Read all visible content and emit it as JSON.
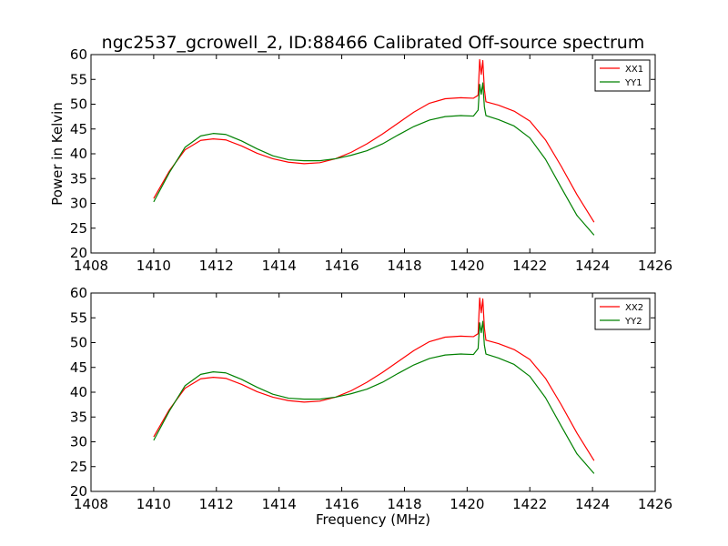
{
  "title": "ngc2537_gcrowell_2, ID:88466 Calibrated Off-source spectrum",
  "chart_data": [
    {
      "type": "line",
      "ylabel": "Power in Kelvin",
      "xlabel": "",
      "xlim": [
        1408,
        1426
      ],
      "ylim": [
        20,
        60
      ],
      "xticks": [
        "1408",
        "1410",
        "1412",
        "1414",
        "1416",
        "1418",
        "1420",
        "1422",
        "1424",
        "1426"
      ],
      "yticks": [
        "20",
        "25",
        "30",
        "35",
        "40",
        "45",
        "50",
        "55",
        "60"
      ],
      "legend": "top-right",
      "series": [
        {
          "name": "XX1",
          "color": "#ff0000",
          "x": [
            1410.0,
            1410.5,
            1411.0,
            1411.5,
            1411.9,
            1412.3,
            1412.8,
            1413.3,
            1413.8,
            1414.3,
            1414.8,
            1415.3,
            1415.8,
            1416.3,
            1416.8,
            1417.3,
            1417.8,
            1418.3,
            1418.8,
            1419.3,
            1419.8,
            1420.2,
            1420.35,
            1420.4,
            1420.45,
            1420.5,
            1420.55,
            1420.6,
            1421.0,
            1421.5,
            1422.0,
            1422.5,
            1423.0,
            1423.5,
            1424.05
          ],
          "values": [
            31,
            36.5,
            40.8,
            42.7,
            43.0,
            42.8,
            41.6,
            40.1,
            39.0,
            38.3,
            38.0,
            38.2,
            39.0,
            40.3,
            42.0,
            44.0,
            46.2,
            48.4,
            50.2,
            51.1,
            51.3,
            51.2,
            51.8,
            59.0,
            56.0,
            58.8,
            53.0,
            50.5,
            49.8,
            48.6,
            46.6,
            42.8,
            37.5,
            31.8,
            26.2
          ]
        },
        {
          "name": "YY1",
          "color": "#008000",
          "x": [
            1410.0,
            1410.5,
            1411.0,
            1411.5,
            1411.9,
            1412.3,
            1412.8,
            1413.3,
            1413.8,
            1414.3,
            1414.8,
            1415.3,
            1415.8,
            1416.3,
            1416.8,
            1417.3,
            1417.8,
            1418.3,
            1418.8,
            1419.3,
            1419.8,
            1420.2,
            1420.35,
            1420.4,
            1420.45,
            1420.5,
            1420.55,
            1420.6,
            1421.0,
            1421.5,
            1422.0,
            1422.5,
            1423.0,
            1423.5,
            1424.05
          ],
          "values": [
            30.3,
            36.2,
            41.3,
            43.6,
            44.1,
            43.9,
            42.6,
            41.0,
            39.6,
            38.8,
            38.6,
            38.6,
            39.0,
            39.7,
            40.6,
            42.0,
            43.8,
            45.5,
            46.8,
            47.5,
            47.7,
            47.6,
            48.8,
            54.0,
            52.0,
            54.3,
            49.5,
            47.7,
            46.9,
            45.6,
            43.2,
            38.9,
            33.2,
            27.6,
            23.6
          ]
        }
      ]
    },
    {
      "type": "line",
      "ylabel": "",
      "xlabel": "Frequency (MHz)",
      "xlim": [
        1408,
        1426
      ],
      "ylim": [
        20,
        60
      ],
      "xticks": [
        "1408",
        "1410",
        "1412",
        "1414",
        "1416",
        "1418",
        "1420",
        "1422",
        "1424",
        "1426"
      ],
      "yticks": [
        "20",
        "25",
        "30",
        "35",
        "40",
        "45",
        "50",
        "55",
        "60"
      ],
      "legend": "top-right",
      "series": [
        {
          "name": "XX2",
          "color": "#ff0000",
          "x": [
            1410.0,
            1410.5,
            1411.0,
            1411.5,
            1411.9,
            1412.3,
            1412.8,
            1413.3,
            1413.8,
            1414.3,
            1414.8,
            1415.3,
            1415.8,
            1416.3,
            1416.8,
            1417.3,
            1417.8,
            1418.3,
            1418.8,
            1419.3,
            1419.8,
            1420.2,
            1420.35,
            1420.4,
            1420.45,
            1420.5,
            1420.55,
            1420.6,
            1421.0,
            1421.5,
            1422.0,
            1422.5,
            1423.0,
            1423.5,
            1424.05
          ],
          "values": [
            31,
            36.5,
            40.8,
            42.7,
            43.0,
            42.8,
            41.6,
            40.1,
            39.0,
            38.3,
            38.0,
            38.2,
            39.0,
            40.3,
            42.0,
            44.0,
            46.2,
            48.4,
            50.2,
            51.1,
            51.3,
            51.2,
            51.8,
            59.0,
            56.0,
            58.8,
            53.0,
            50.5,
            49.8,
            48.6,
            46.6,
            42.8,
            37.5,
            31.8,
            26.2
          ]
        },
        {
          "name": "YY2",
          "color": "#008000",
          "x": [
            1410.0,
            1410.5,
            1411.0,
            1411.5,
            1411.9,
            1412.3,
            1412.8,
            1413.3,
            1413.8,
            1414.3,
            1414.8,
            1415.3,
            1415.8,
            1416.3,
            1416.8,
            1417.3,
            1417.8,
            1418.3,
            1418.8,
            1419.3,
            1419.8,
            1420.2,
            1420.35,
            1420.4,
            1420.45,
            1420.5,
            1420.55,
            1420.6,
            1421.0,
            1421.5,
            1422.0,
            1422.5,
            1423.0,
            1423.5,
            1424.05
          ],
          "values": [
            30.3,
            36.2,
            41.3,
            43.6,
            44.1,
            43.9,
            42.6,
            41.0,
            39.6,
            38.8,
            38.6,
            38.6,
            39.0,
            39.7,
            40.6,
            42.0,
            43.8,
            45.5,
            46.8,
            47.5,
            47.7,
            47.6,
            48.8,
            54.0,
            52.0,
            54.3,
            49.5,
            47.7,
            46.9,
            45.6,
            43.2,
            38.9,
            33.2,
            27.6,
            23.6
          ]
        }
      ]
    }
  ]
}
